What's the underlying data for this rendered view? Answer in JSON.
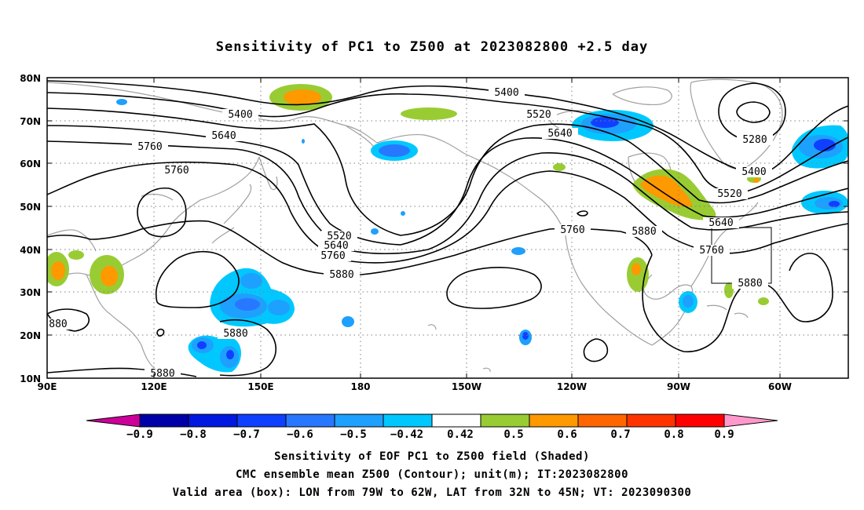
{
  "title": "Sensitivity of PC1 to Z500 at 2023082800 +2.5 day",
  "map": {
    "lat_ticks": [
      "80N",
      "70N",
      "60N",
      "50N",
      "40N",
      "30N",
      "20N",
      "10N"
    ],
    "lon_ticks": [
      "90E",
      "120E",
      "150E",
      "180",
      "150W",
      "120W",
      "90W",
      "60W"
    ],
    "contour_levels": [
      "5280",
      "5400",
      "5520",
      "5640",
      "5760",
      "5880"
    ],
    "contour_labels": [
      "5400",
      "5400",
      "5640",
      "5760",
      "5760",
      "5520",
      "5640",
      "5760",
      "5880",
      "5520",
      "5640",
      "5280",
      "5400",
      "5520",
      "5640",
      "5760",
      "5760",
      "5880",
      "5880",
      "5880",
      "880",
      "5880"
    ],
    "valid_box": {
      "lon_min": "79W",
      "lon_max": "62W",
      "lat_min": "32N",
      "lat_max": "45N"
    }
  },
  "colorbar": {
    "labels": [
      "−0.9",
      "−0.8",
      "−0.7",
      "−0.6",
      "−0.5",
      "−0.42",
      "0.42",
      "0.5",
      "0.6",
      "0.7",
      "0.8",
      "0.9"
    ],
    "colors": [
      "#0000a8",
      "#0018e0",
      "#1040ff",
      "#2878ff",
      "#1ea0ff",
      "#00c8ff",
      "#ffffff",
      "#99cc33",
      "#ff9900",
      "#ff6600",
      "#ff3300",
      "#ff0000"
    ],
    "under_color": "#cc0099",
    "over_color": "#ff99cc"
  },
  "captions": {
    "line1": "Sensitivity of EOF PC1 to Z500 field (Shaded)",
    "line2": "CMC ensemble mean Z500 (Contour); unit(m); IT:2023082800",
    "line3": "Valid area (box): LON from 79W to 62W, LAT from 32N to 45N; VT: 2023090300"
  }
}
